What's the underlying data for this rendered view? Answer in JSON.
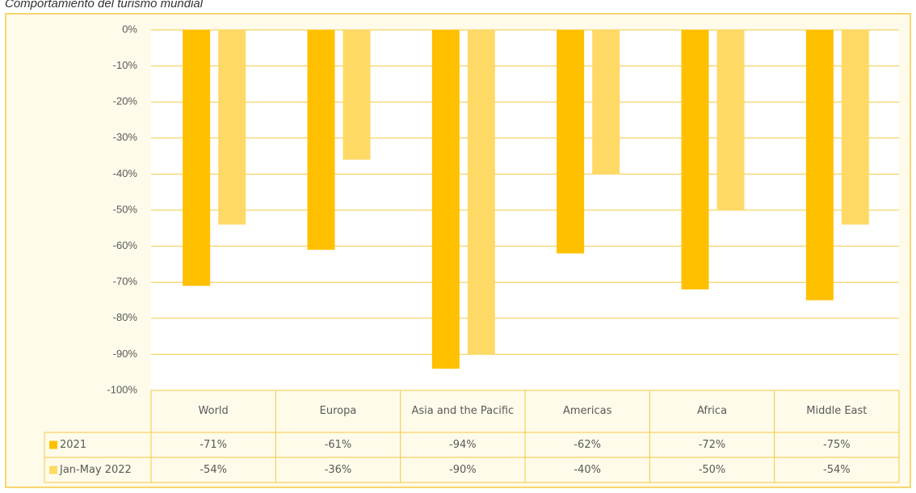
{
  "chart_data": {
    "type": "bar",
    "title": "Comportamiento del turismo mundial",
    "categories": [
      "World",
      "Europa",
      "Asia and the Pacific",
      "Americas",
      "Africa",
      "Middle East"
    ],
    "series": [
      {
        "name": "2021",
        "color": "#ffc000",
        "values": [
          -71,
          -61,
          -94,
          -62,
          -72,
          -75
        ],
        "value_labels": [
          "-71%",
          "-61%",
          "-94%",
          "-62%",
          "-72%",
          "-75%"
        ]
      },
      {
        "name": "Jan-May 2022",
        "color": "#ffd966",
        "values": [
          -54,
          -36,
          -90,
          -40,
          -50,
          -54
        ],
        "value_labels": [
          "-54%",
          "-36%",
          "-90%",
          "-40%",
          "-50%",
          "-54%"
        ]
      }
    ],
    "ylim": [
      -100,
      0
    ],
    "yticks": [
      {
        "value": 0,
        "label": "0%"
      },
      {
        "value": -10,
        "label": "-10%"
      },
      {
        "value": -20,
        "label": "-20%"
      },
      {
        "value": -30,
        "label": "-30%"
      },
      {
        "value": -40,
        "label": "-40%"
      },
      {
        "value": -50,
        "label": "-50%"
      },
      {
        "value": -60,
        "label": "-60%"
      },
      {
        "value": -70,
        "label": "-70%"
      },
      {
        "value": -80,
        "label": "-80%"
      },
      {
        "value": -90,
        "label": "-90%"
      },
      {
        "value": -100,
        "label": "-100%"
      }
    ],
    "grid": true
  }
}
